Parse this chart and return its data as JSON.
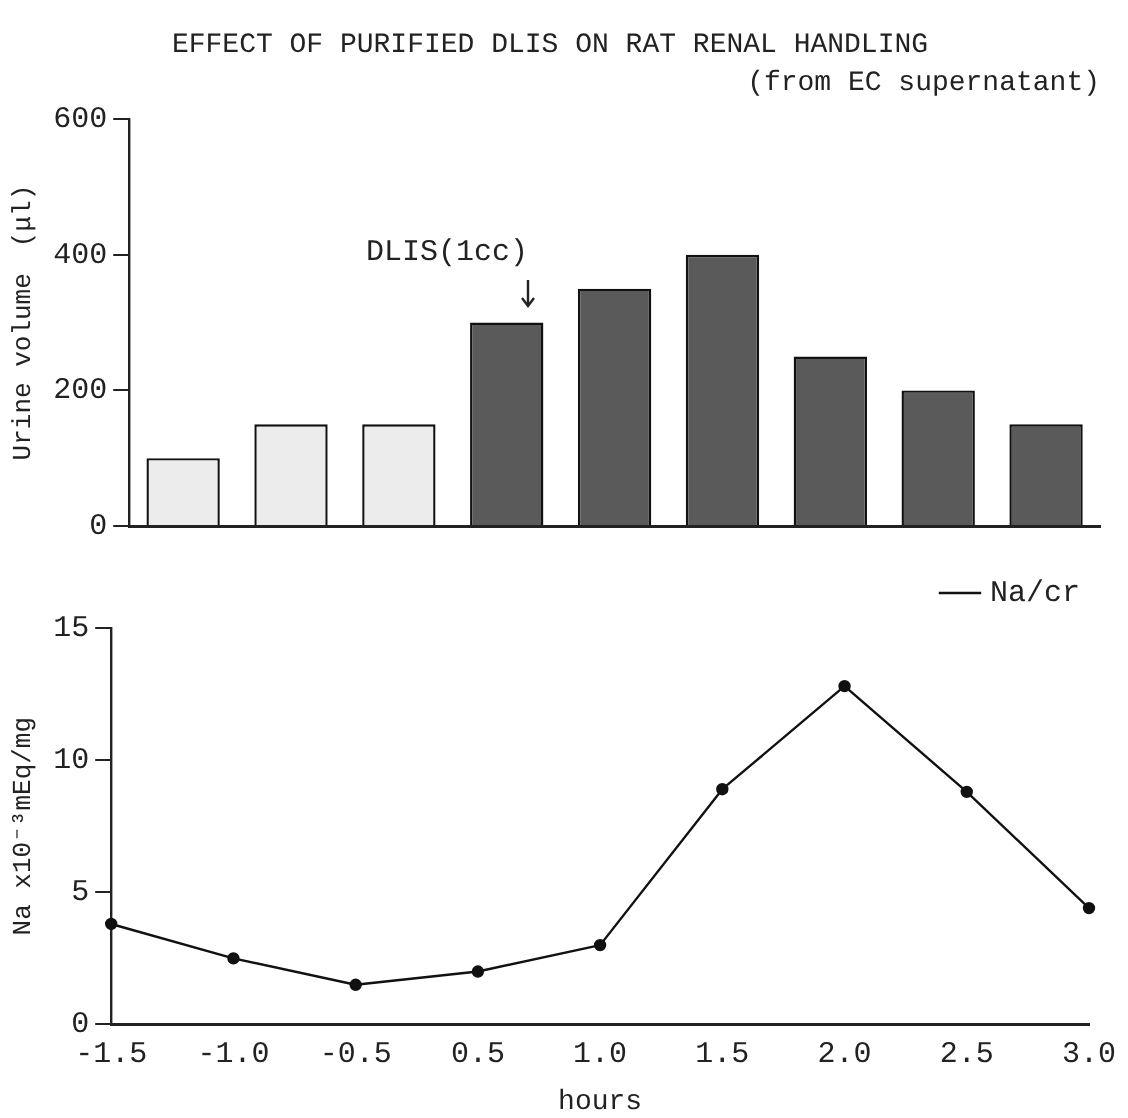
{
  "chart_data": [
    {
      "type": "bar",
      "title": "EFFECT OF PURIFIED DLIS ON RAT RENAL HANDLING",
      "subtitle": "(from EC supernatant)",
      "ylabel": "Urine volume　(μl)",
      "categories": [
        null,
        null,
        null,
        null,
        null,
        null,
        null,
        null,
        null
      ],
      "values": [
        100,
        150,
        150,
        300,
        350,
        400,
        250,
        200,
        150
      ],
      "colors": [
        "#ececec",
        "#ececec",
        "#ececec",
        "#5a5a5a",
        "#5a5a5a",
        "#5a5a5a",
        "#5a5a5a",
        "#5a5a5a",
        "#5a5a5a"
      ],
      "ylim": [
        0,
        600
      ],
      "yticks": [
        0,
        200,
        400,
        600
      ],
      "grid": false,
      "legend": false,
      "tick_labels": "y",
      "annotations": [
        "DLIS(1cc)"
      ]
    },
    {
      "type": "line",
      "xlabel": "hours",
      "ylabel": "Na x10⁻³mEq/mg",
      "categories": [
        "-1.5",
        "-1.0",
        "-0.5",
        "0.5",
        "1.0",
        "1.5",
        "2.0",
        "2.5",
        "3.0"
      ],
      "series": [
        {
          "name": "Na/cr",
          "color": "#111111",
          "values": [
            3.8,
            2.5,
            1.5,
            2.0,
            3.0,
            8.9,
            12.8,
            8.8,
            4.4
          ]
        }
      ],
      "ylim": [
        0,
        15
      ],
      "yticks": [
        0,
        5,
        10,
        15
      ],
      "grid": false,
      "legend": "top right",
      "marker": "circle",
      "line_style": "solid"
    }
  ]
}
